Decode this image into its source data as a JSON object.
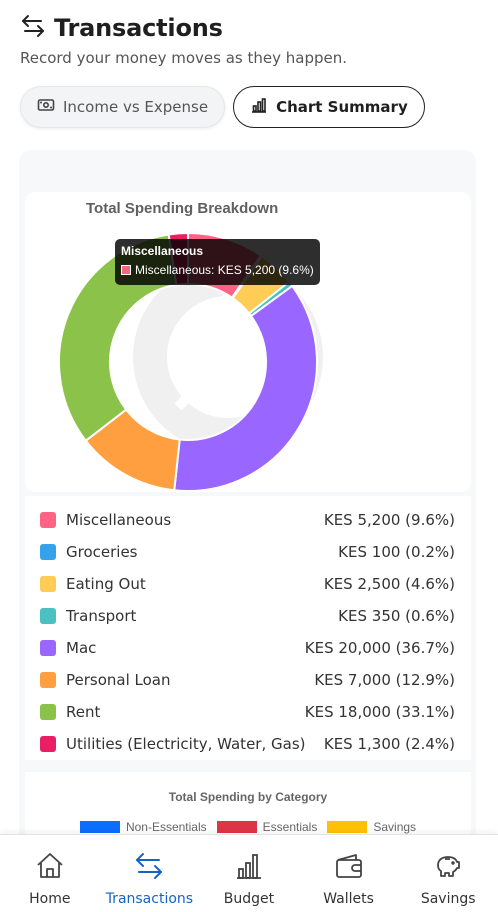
{
  "header": {
    "title": "Transactions",
    "subtitle": "Record your money moves as they happen."
  },
  "tabs": [
    {
      "label": "Income vs Expense",
      "icon": "cash-icon",
      "active": false
    },
    {
      "label": "Chart Summary",
      "icon": "bar-chart-icon",
      "active": true
    }
  ],
  "tooltip": {
    "title": "Miscellaneous",
    "text": "Miscellaneous: KES 5,200 (9.6%)"
  },
  "colors": {
    "accent": "#1565c0"
  },
  "chart_data": [
    {
      "type": "pie",
      "variant": "doughnut",
      "title": "Total Spending Breakdown",
      "categories": [
        "Miscellaneous",
        "Groceries",
        "Eating Out",
        "Transport",
        "Mac",
        "Personal Loan",
        "Rent",
        "Utilities (Electricity, Water, Gas)"
      ],
      "values": [
        5200,
        100,
        2500,
        350,
        20000,
        7000,
        18000,
        1300
      ],
      "labels": [
        "KES 5,200 (9.6%)",
        "KES 100 (0.2%)",
        "KES 2,500 (4.6%)",
        "KES 350 (0.6%)",
        "KES 20,000 (36.7%)",
        "KES 7,000 (12.9%)",
        "KES 18,000 (33.1%)",
        "KES 1,300 (2.4%)"
      ],
      "colors": [
        "#ff6384",
        "#36a2eb",
        "#ffcd56",
        "#4bc0c0",
        "#9966ff",
        "#ff9f40",
        "#8bc34a",
        "#e91e63"
      ],
      "legend": "below"
    },
    {
      "type": "bar",
      "title": "Total Spending by Category",
      "series": [
        {
          "name": "Non-Essentials",
          "color": "#0d6efd"
        },
        {
          "name": "Essentials",
          "color": "#dc3545"
        },
        {
          "name": "Savings",
          "color": "#ffc107"
        }
      ],
      "legend": "top"
    }
  ],
  "nav": [
    {
      "label": "Home",
      "icon": "home-icon",
      "active": false
    },
    {
      "label": "Transactions",
      "icon": "transactions-icon",
      "active": true
    },
    {
      "label": "Budget",
      "icon": "budget-icon",
      "active": false
    },
    {
      "label": "Wallets",
      "icon": "wallet-icon",
      "active": false
    },
    {
      "label": "Savings",
      "icon": "piggy-bank-icon",
      "active": false
    }
  ]
}
